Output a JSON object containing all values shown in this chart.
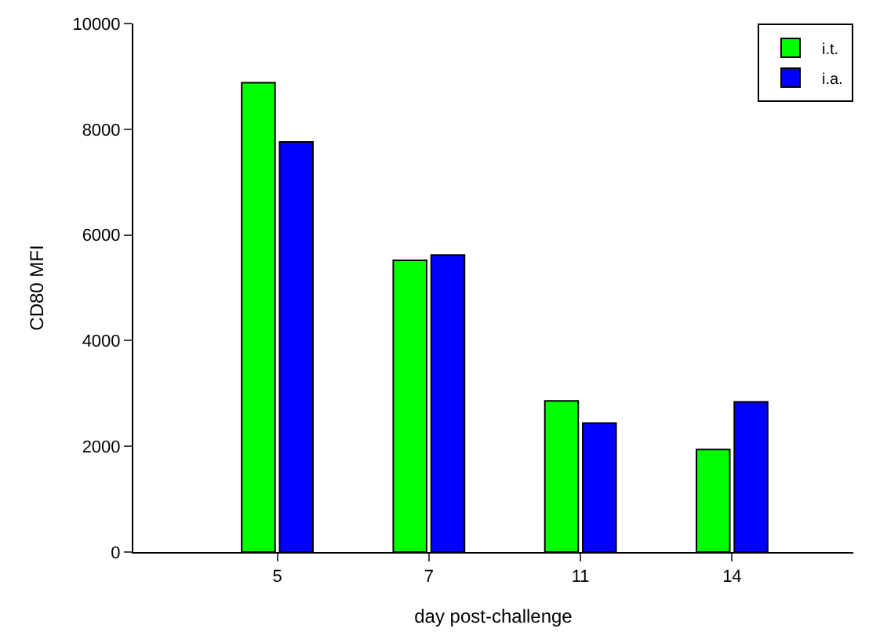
{
  "chart_data": {
    "type": "bar",
    "xlabel": "day post-challenge",
    "ylabel": "CD80 MFI",
    "categories": [
      "5",
      "7",
      "11",
      "14"
    ],
    "series": [
      {
        "name": "i.t.",
        "color": "#00ff00",
        "values": [
          8880,
          5520,
          2860,
          1940
        ]
      },
      {
        "name": "i.a.",
        "color": "#0000ff",
        "values": [
          7760,
          5620,
          2440,
          2840
        ]
      }
    ],
    "ylim": [
      0,
      10000
    ],
    "yticks": [
      0,
      2000,
      4000,
      6000,
      8000,
      10000
    ],
    "legend": "top right"
  }
}
